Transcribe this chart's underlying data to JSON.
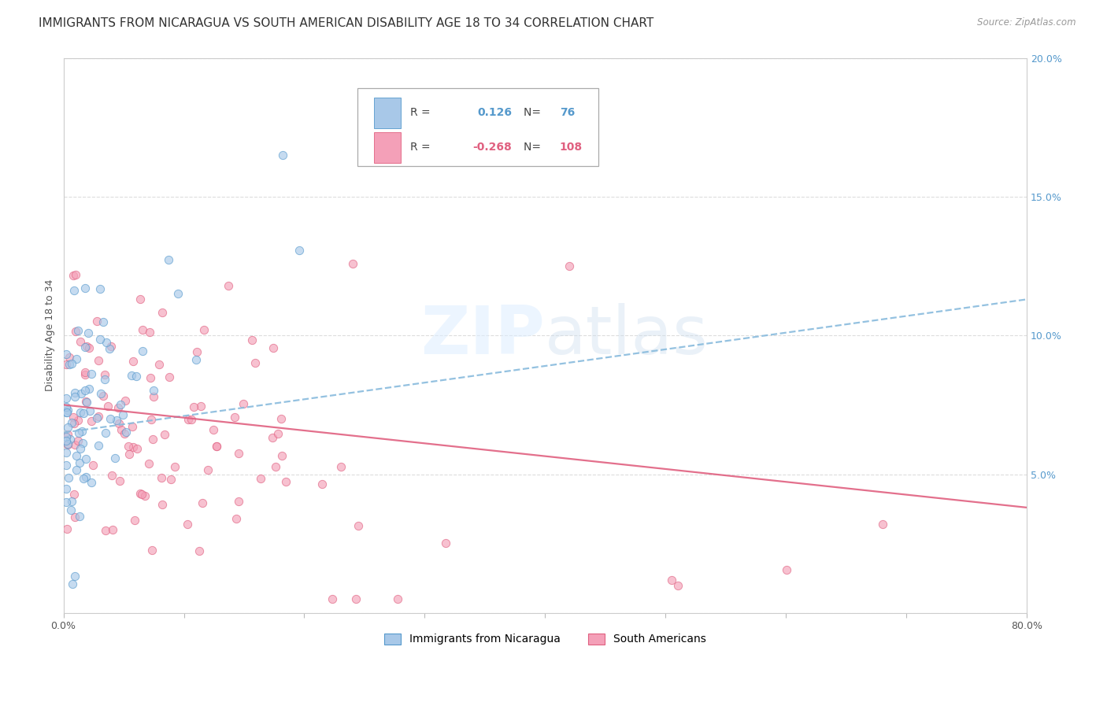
{
  "title": "IMMIGRANTS FROM NICARAGUA VS SOUTH AMERICAN DISABILITY AGE 18 TO 34 CORRELATION CHART",
  "source": "Source: ZipAtlas.com",
  "ylabel": "Disability Age 18 to 34",
  "xlim": [
    0.0,
    0.8
  ],
  "ylim": [
    0.0,
    0.2
  ],
  "background_color": "#ffffff",
  "watermark": "ZIPatlas",
  "legend_R1_val": "0.126",
  "legend_N1_val": "76",
  "legend_R2_val": "-0.268",
  "legend_N2_val": "108",
  "blue_fill": "#a8c8e8",
  "blue_edge": "#5599cc",
  "pink_fill": "#f4a0b8",
  "pink_edge": "#e06080",
  "blue_line_color": "#88bbdd",
  "pink_line_color": "#e06080",
  "blue_R": 0.126,
  "blue_N": 76,
  "pink_R": -0.268,
  "pink_N": 108,
  "title_fontsize": 11,
  "axis_label_fontsize": 9,
  "tick_fontsize": 9,
  "right_tick_color": "#5599cc",
  "scatter_alpha": 0.65,
  "scatter_size": 55,
  "blue_trend_start_y": 0.065,
  "blue_trend_end_y": 0.113,
  "pink_trend_start_y": 0.075,
  "pink_trend_end_y": 0.038
}
